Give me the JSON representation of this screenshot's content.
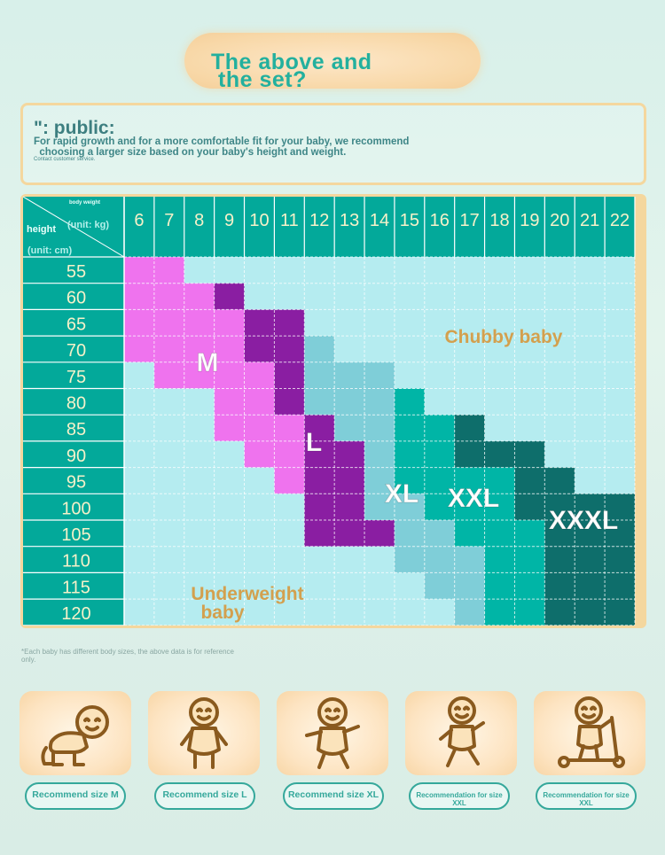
{
  "title": {
    "line1": "The above and",
    "line2": "the set?"
  },
  "notice": {
    "heading": "\": public:",
    "body_line1": "For rapid growth and for a more comfortable fit for your baby, we recommend",
    "body_line2": "  choosing a larger size based on your baby's height and weight.",
    "small": "Contact customer service."
  },
  "chart": {
    "corner_top": "body weight",
    "corner_unit_kg": "(unit: kg)",
    "corner_height": "height",
    "corner_unit_cm": "(unit: cm)",
    "weights": [
      "6",
      "7",
      "8",
      "9",
      "10",
      "11",
      "12",
      "13",
      "14",
      "15",
      "16",
      "17",
      "18",
      "19",
      "20",
      "21",
      "22"
    ],
    "heights": [
      "55",
      "60",
      "65",
      "70",
      "75",
      "80",
      "85",
      "90",
      "95",
      "100",
      "105",
      "110",
      "115",
      "120"
    ],
    "size_labels": {
      "M": "M",
      "L": "L",
      "XL": "XL",
      "XXL": "XXL",
      "XXXL": "XXXL"
    },
    "region_labels": {
      "chubby": "Chubby baby",
      "under1": "Underweight",
      "under2": "baby"
    },
    "colors": {
      "M": "#ef73ee",
      "L": "#8a1ea2",
      "XL": "#7fced8",
      "XXL": "#00b5a6",
      "XXXL": "#0e6e6b",
      "empty": "#b5ecf0",
      "header": "#03a99a"
    }
  },
  "chart_note": "*Each baby has different body sizes, the above data is for reference only.",
  "cards": [
    {
      "icon": "crawling-baby-icon",
      "label": "Recommend size M"
    },
    {
      "icon": "standing-baby-icon",
      "label": "Recommend size L"
    },
    {
      "icon": "walking-baby-icon",
      "label": "Recommend size XL"
    },
    {
      "icon": "running-baby-icon",
      "label": "Recommendation for size XXL"
    },
    {
      "icon": "scooter-baby-icon",
      "label": "Recommendation for size XXL"
    }
  ]
}
